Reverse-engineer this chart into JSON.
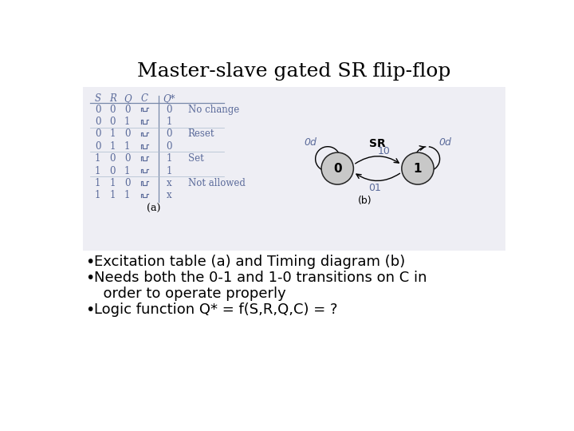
{
  "title": "Master-slave gated SR flip-flop",
  "title_fontsize": 18,
  "background_color": "#ffffff",
  "bullet_points": [
    "Excitation table (a) and Timing diagram (b)",
    "Needs both the 0-1 and 1-0 transitions on C in",
    "  order to operate properly",
    "Logic function Q* = f(S,R,Q,C) = ?"
  ],
  "bullet_flags": [
    true,
    true,
    false,
    true
  ],
  "table_rows": [
    [
      "0",
      "0",
      "0",
      "0",
      "No change"
    ],
    [
      "0",
      "0",
      "1",
      "1",
      ""
    ],
    [
      "0",
      "1",
      "0",
      "0",
      "Reset"
    ],
    [
      "0",
      "1",
      "1",
      "0",
      ""
    ],
    [
      "1",
      "0",
      "0",
      "1",
      "Set"
    ],
    [
      "1",
      "0",
      "1",
      "1",
      ""
    ],
    [
      "1",
      "1",
      "0",
      "x",
      "Not allowed"
    ],
    [
      "1",
      "1",
      "1",
      "x",
      ""
    ]
  ],
  "table_label": "(a)",
  "diagram_label": "(b)",
  "state0_label": "0",
  "state1_label": "1",
  "self_loop0_label": "0d",
  "self_loop1_label": "0d",
  "sr_label": "SR",
  "arrow_10_label": "10",
  "arrow_01_label": "01",
  "text_color": "#000000",
  "table_text_color": "#5a6a9a",
  "state_fill": "#c8c8c8",
  "diagram_text_color": "#5a6a9a",
  "content_bg": "#eeeef4"
}
